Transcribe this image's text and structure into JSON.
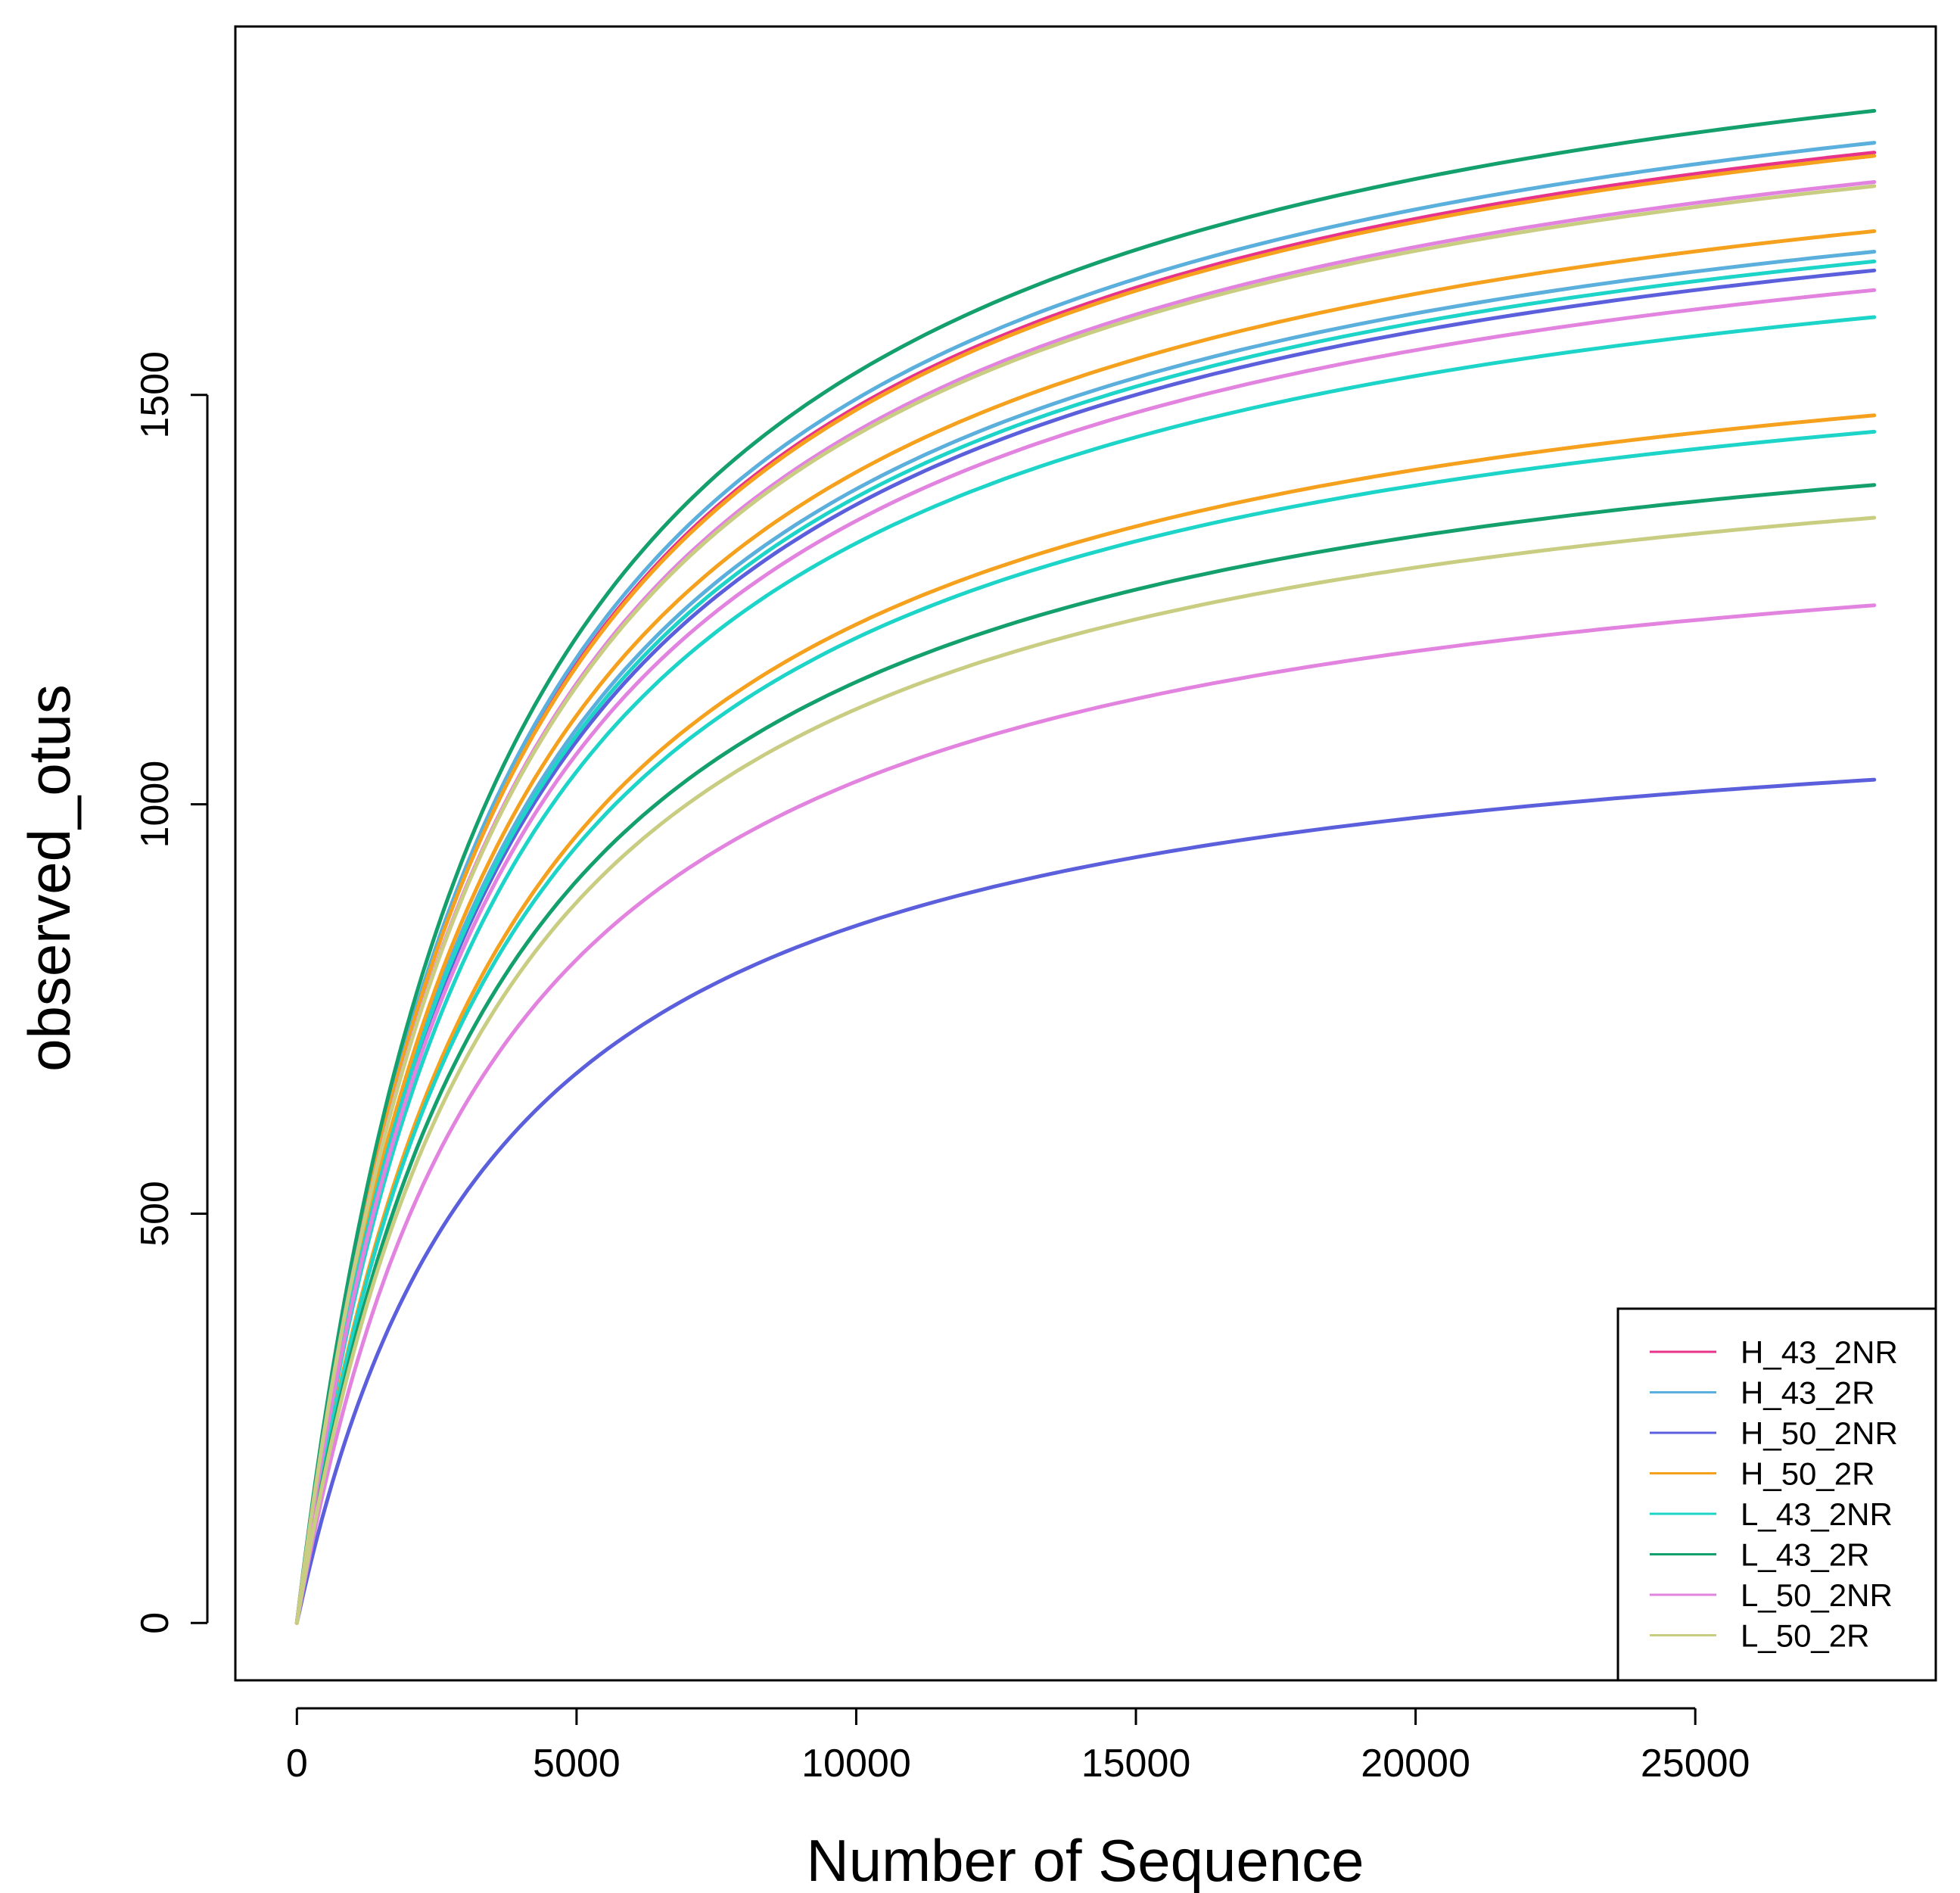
{
  "chart_data": {
    "type": "line",
    "title": "",
    "xlabel": "Number of Sequence",
    "ylabel": "observed_otus",
    "xlim": [
      -1100,
      29300
    ],
    "ylim": [
      -70,
      1950
    ],
    "x_ticks": [
      0,
      5000,
      10000,
      15000,
      20000,
      25000
    ],
    "x_tick_labels": [
      "0",
      "5000",
      "10000",
      "15000",
      "20000",
      "25000"
    ],
    "y_ticks": [
      0,
      500,
      1000,
      1500
    ],
    "y_tick_labels": [
      "0",
      "500",
      "1000",
      "1500"
    ],
    "x_max": 28200,
    "legend_position": "bottom-right",
    "groups": [
      {
        "name": "H_43_2NR",
        "color": "#e8338a"
      },
      {
        "name": "H_43_2R",
        "color": "#5aafdc"
      },
      {
        "name": "H_50_2NR",
        "color": "#5b5fdc"
      },
      {
        "name": "H_50_2R",
        "color": "#f5a11d"
      },
      {
        "name": "L_43_2NR",
        "color": "#1dd4c8"
      },
      {
        "name": "L_43_2R",
        "color": "#14a06c"
      },
      {
        "name": "L_50_2NR",
        "color": "#e383e0"
      },
      {
        "name": "L_50_2R",
        "color": "#c9cd82"
      }
    ],
    "series": [
      {
        "group": "H_43_2NR",
        "color": "#e8338a",
        "final": 1796
      },
      {
        "group": "H_43_2R",
        "color": "#5aafdc",
        "final": 1808
      },
      {
        "group": "H_43_2R",
        "color": "#5aafdc",
        "final": 1675
      },
      {
        "group": "H_50_2NR",
        "color": "#5b5fdc",
        "final": 1652
      },
      {
        "group": "H_50_2NR",
        "color": "#5b5fdc",
        "final": 1030
      },
      {
        "group": "H_50_2R",
        "color": "#f5a11d",
        "final": 1792
      },
      {
        "group": "H_50_2R",
        "color": "#f5a11d",
        "final": 1700
      },
      {
        "group": "H_50_2R",
        "color": "#f5a11d",
        "final": 1475
      },
      {
        "group": "L_43_2NR",
        "color": "#1dd4c8",
        "final": 1663
      },
      {
        "group": "L_43_2NR",
        "color": "#1dd4c8",
        "final": 1595
      },
      {
        "group": "L_43_2NR",
        "color": "#1dd4c8",
        "final": 1455
      },
      {
        "group": "L_43_2R",
        "color": "#14a06c",
        "final": 1847
      },
      {
        "group": "L_43_2R",
        "color": "#14a06c",
        "final": 1390
      },
      {
        "group": "L_50_2NR",
        "color": "#e383e0",
        "final": 1760
      },
      {
        "group": "L_50_2NR",
        "color": "#e383e0",
        "final": 1628
      },
      {
        "group": "L_50_2NR",
        "color": "#e383e0",
        "final": 1243
      },
      {
        "group": "L_50_2R",
        "color": "#c9cd82",
        "final": 1755
      },
      {
        "group": "L_50_2R",
        "color": "#c9cd82",
        "final": 1350
      }
    ]
  }
}
